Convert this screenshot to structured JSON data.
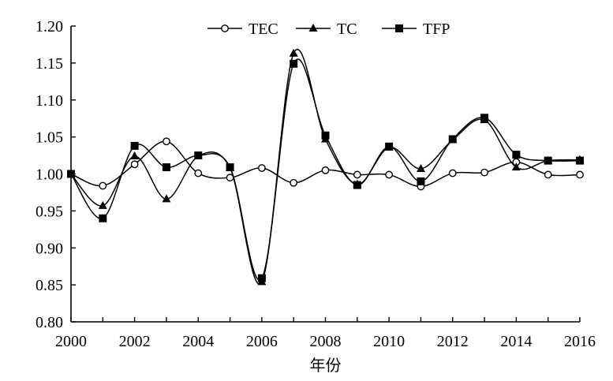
{
  "chart_data": {
    "type": "line",
    "title": "",
    "xlabel": "年份",
    "ylabel": "",
    "x": [
      2000,
      2001,
      2002,
      2003,
      2004,
      2005,
      2006,
      2007,
      2008,
      2009,
      2010,
      2011,
      2012,
      2013,
      2014,
      2015,
      2016
    ],
    "x_tick_labels": [
      "2000",
      "2002",
      "2004",
      "2006",
      "2008",
      "2010",
      "2012",
      "2014",
      "2016"
    ],
    "y_tick_labels": [
      "0.80",
      "0.85",
      "0.90",
      "0.95",
      "1.00",
      "1.05",
      "1.10",
      "1.15",
      "1.20"
    ],
    "xlim": [
      2000,
      2016
    ],
    "ylim": [
      0.8,
      1.2
    ],
    "grid": false,
    "legend_position": "top-center",
    "series": [
      {
        "name": "TEC",
        "marker": "circle-open",
        "values": [
          1.0,
          0.984,
          1.013,
          1.044,
          1.001,
          0.995,
          1.008,
          0.988,
          1.005,
          0.999,
          0.999,
          0.983,
          1.001,
          1.002,
          1.016,
          0.999,
          0.999
        ]
      },
      {
        "name": "TC",
        "marker": "triangle-filled",
        "values": [
          1.0,
          0.957,
          1.024,
          0.966,
          1.024,
          1.008,
          0.854,
          1.163,
          1.047,
          0.986,
          1.036,
          1.007,
          1.046,
          1.073,
          1.009,
          1.018,
          1.019
        ]
      },
      {
        "name": "TFP",
        "marker": "square-filled",
        "values": [
          1.0,
          0.94,
          1.038,
          1.009,
          1.025,
          1.009,
          0.859,
          1.149,
          1.052,
          0.985,
          1.037,
          0.99,
          1.047,
          1.076,
          1.026,
          1.018,
          1.018
        ]
      }
    ]
  }
}
